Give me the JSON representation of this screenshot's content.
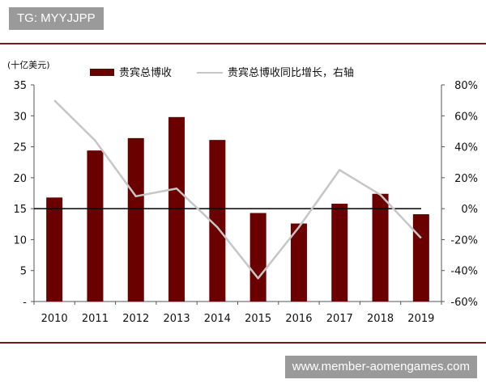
{
  "watermark_top": "TG: MYYJJPP",
  "watermark_bottom": "www.member-aomengames.com",
  "colors": {
    "bar": "#6b0000",
    "line": "#c6c6c6",
    "zero_line": "#000000",
    "rule": "#7a1a1a",
    "badge_bg": "#9a9a9a"
  },
  "chart_data": {
    "type": "bar",
    "unit_label": "(十亿美元)",
    "categories": [
      "2010",
      "2011",
      "2012",
      "2013",
      "2014",
      "2015",
      "2016",
      "2017",
      "2018",
      "2019"
    ],
    "series": [
      {
        "name": "贵宾总博收",
        "type": "bar",
        "axis": "left",
        "values": [
          16.8,
          24.4,
          26.4,
          29.8,
          26.1,
          14.3,
          12.6,
          15.8,
          17.4,
          14.1
        ]
      },
      {
        "name": "贵宾总博收同比增长，右轴",
        "type": "line",
        "axis": "right",
        "values": [
          70,
          44,
          8,
          13,
          -12,
          -45,
          -12,
          25,
          9,
          -19
        ]
      }
    ],
    "left_axis": {
      "ylim": [
        0,
        35
      ],
      "ticks": [
        0,
        5,
        10,
        15,
        20,
        25,
        30,
        35
      ],
      "tick_labels": [
        "-",
        "5",
        "10",
        "15",
        "20",
        "25",
        "30",
        "35"
      ]
    },
    "right_axis": {
      "ylim": [
        -60,
        80
      ],
      "ticks": [
        -60,
        -40,
        -20,
        0,
        20,
        40,
        60,
        80
      ],
      "tick_labels": [
        "-60%",
        "-40%",
        "-20%",
        "0%",
        "20%",
        "40%",
        "60%",
        "80%"
      ]
    },
    "legend_position": "top",
    "grid": false
  }
}
